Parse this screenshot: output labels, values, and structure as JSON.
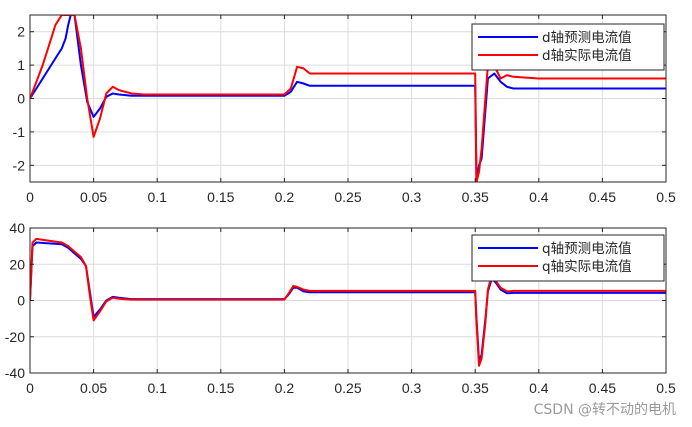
{
  "chart_data": [
    {
      "type": "line",
      "xlim": [
        0,
        0.5
      ],
      "ylim": [
        -2.5,
        2.5
      ],
      "xticks": [
        0,
        0.05,
        0.1,
        0.15,
        0.2,
        0.25,
        0.3,
        0.35,
        0.4,
        0.45,
        0.5
      ],
      "yticks": [
        -2,
        -1,
        0,
        1,
        2
      ],
      "xtick_labels": [
        "0",
        "0.05",
        "0.1",
        "0.15",
        "0.2",
        "0.25",
        "0.3",
        "0.35",
        "0.4",
        "0.45",
        "0.5"
      ],
      "ytick_labels": [
        "-2",
        "-1",
        "0",
        "1",
        "2"
      ],
      "grid": true,
      "legend_position": "top-right",
      "series": [
        {
          "name": "d轴预测电流值",
          "color": "#0000ff",
          "x": [
            0,
            0.005,
            0.01,
            0.015,
            0.02,
            0.025,
            0.028,
            0.03,
            0.032,
            0.035,
            0.04,
            0.045,
            0.05,
            0.055,
            0.06,
            0.065,
            0.07,
            0.08,
            0.09,
            0.1,
            0.12,
            0.15,
            0.18,
            0.2,
            0.205,
            0.21,
            0.215,
            0.22,
            0.25,
            0.3,
            0.35,
            0.351,
            0.353,
            0.355,
            0.36,
            0.365,
            0.37,
            0.375,
            0.38,
            0.4,
            0.45,
            0.5
          ],
          "y": [
            0,
            0.3,
            0.6,
            0.9,
            1.2,
            1.5,
            1.8,
            2.2,
            2.5,
            2.5,
            1.0,
            -0.1,
            -0.55,
            -0.3,
            0.05,
            0.15,
            0.12,
            0.08,
            0.08,
            0.08,
            0.08,
            0.08,
            0.08,
            0.08,
            0.2,
            0.5,
            0.45,
            0.38,
            0.38,
            0.38,
            0.38,
            -2.5,
            -2.0,
            -1.8,
            0.6,
            0.75,
            0.5,
            0.35,
            0.3,
            0.3,
            0.3,
            0.3
          ]
        },
        {
          "name": "d轴实际电流值",
          "color": "#ff0000",
          "x": [
            0,
            0.005,
            0.01,
            0.015,
            0.02,
            0.025,
            0.03,
            0.035,
            0.04,
            0.045,
            0.05,
            0.055,
            0.06,
            0.065,
            0.07,
            0.08,
            0.09,
            0.1,
            0.12,
            0.15,
            0.18,
            0.2,
            0.205,
            0.21,
            0.215,
            0.22,
            0.25,
            0.3,
            0.35,
            0.351,
            0.353,
            0.355,
            0.36,
            0.363,
            0.366,
            0.37,
            0.375,
            0.38,
            0.4,
            0.45,
            0.5
          ],
          "y": [
            0,
            0.5,
            1.0,
            1.6,
            2.2,
            2.5,
            2.5,
            2.5,
            1.5,
            0.0,
            -1.15,
            -0.6,
            0.15,
            0.35,
            0.25,
            0.15,
            0.12,
            0.12,
            0.12,
            0.12,
            0.12,
            0.12,
            0.3,
            0.95,
            0.9,
            0.75,
            0.75,
            0.75,
            0.75,
            -2.5,
            -2.2,
            -1.5,
            1.0,
            1.0,
            0.9,
            0.6,
            0.7,
            0.65,
            0.6,
            0.6,
            0.6
          ]
        }
      ]
    },
    {
      "type": "line",
      "xlim": [
        0,
        0.5
      ],
      "ylim": [
        -40,
        40
      ],
      "xticks": [
        0,
        0.05,
        0.1,
        0.15,
        0.2,
        0.25,
        0.3,
        0.35,
        0.4,
        0.45,
        0.5
      ],
      "yticks": [
        -40,
        -20,
        0,
        20,
        40
      ],
      "xtick_labels": [
        "0",
        "0.05",
        "0.1",
        "0.15",
        "0.2",
        "0.25",
        "0.3",
        "0.35",
        "0.4",
        "0.45",
        "0.5"
      ],
      "ytick_labels": [
        "-40",
        "-20",
        "0",
        "20",
        "40"
      ],
      "grid": true,
      "legend_position": "top-right",
      "series": [
        {
          "name": "q轴预测电流值",
          "color": "#0000ff",
          "x": [
            0,
            0.002,
            0.005,
            0.015,
            0.025,
            0.03,
            0.035,
            0.04,
            0.044,
            0.047,
            0.05,
            0.055,
            0.06,
            0.065,
            0.07,
            0.08,
            0.1,
            0.15,
            0.2,
            0.203,
            0.207,
            0.21,
            0.215,
            0.22,
            0.25,
            0.3,
            0.35,
            0.351,
            0.353,
            0.355,
            0.358,
            0.36,
            0.363,
            0.366,
            0.37,
            0.375,
            0.38,
            0.4,
            0.45,
            0.5
          ],
          "y": [
            0,
            30,
            32,
            31.5,
            31,
            29,
            26,
            23,
            19,
            5,
            -9,
            -5,
            0,
            2,
            1.5,
            0.8,
            0.8,
            0.8,
            0.8,
            3,
            7,
            7,
            5,
            4.6,
            4.6,
            4.6,
            4.6,
            -10,
            -33,
            -30,
            -10,
            5,
            12,
            10,
            6,
            4,
            4.2,
            4.2,
            4.2,
            4.2
          ]
        },
        {
          "name": "q轴实际电流值",
          "color": "#ff0000",
          "x": [
            0,
            0.002,
            0.005,
            0.015,
            0.025,
            0.03,
            0.035,
            0.04,
            0.044,
            0.047,
            0.05,
            0.055,
            0.06,
            0.065,
            0.07,
            0.08,
            0.1,
            0.15,
            0.2,
            0.203,
            0.207,
            0.21,
            0.215,
            0.22,
            0.25,
            0.3,
            0.35,
            0.351,
            0.353,
            0.355,
            0.358,
            0.36,
            0.363,
            0.366,
            0.37,
            0.375,
            0.38,
            0.4,
            0.45,
            0.5
          ],
          "y": [
            0,
            32,
            34,
            33,
            32,
            30,
            27,
            24,
            19,
            3,
            -11,
            -6,
            -0.5,
            1.5,
            1,
            0.5,
            0.5,
            0.5,
            0.5,
            3.5,
            8,
            7.5,
            6,
            5.3,
            5.3,
            5.3,
            5.3,
            -12,
            -36,
            -32,
            -12,
            6,
            14,
            11,
            7,
            5,
            5.3,
            5.3,
            5.3,
            5.3
          ]
        }
      ]
    }
  ],
  "watermark": "CSDN @转不动的电机"
}
